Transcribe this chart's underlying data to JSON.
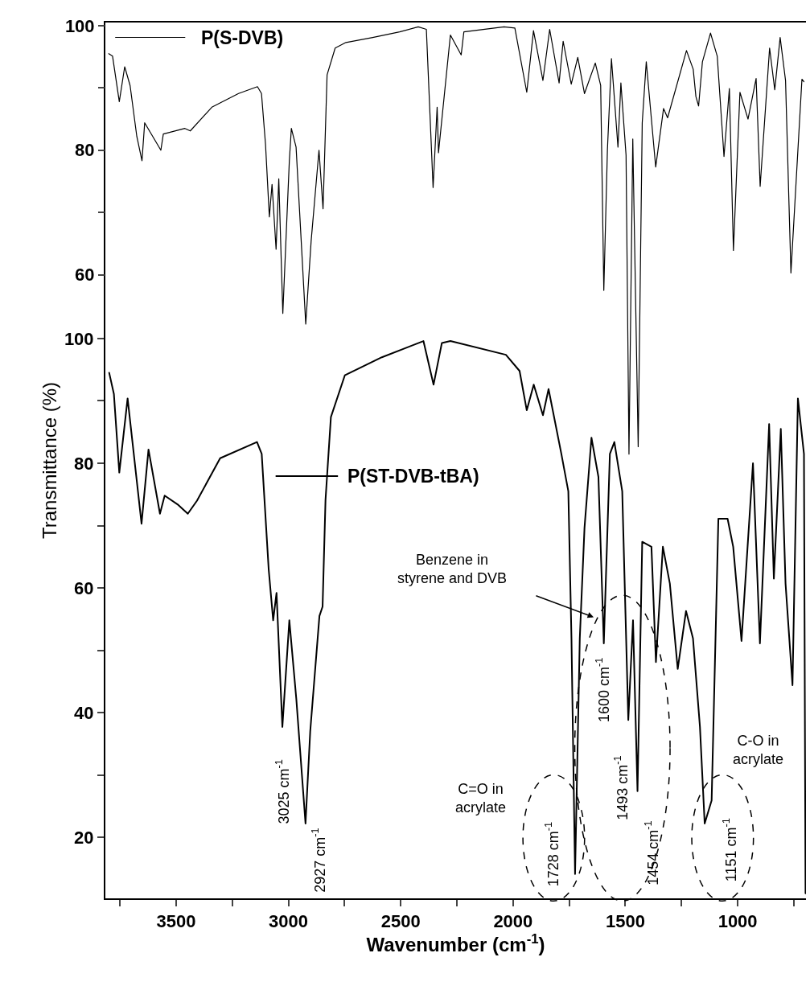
{
  "chart_data": {
    "type": "line",
    "xlabel": "Wavenumber (cm$^{-1}$)",
    "ylabel": "Transmittance (%)",
    "xlim": [
      3815,
      696
    ],
    "xticks": [
      {
        "value": 3750,
        "label": null
      },
      3500,
      {
        "value": 3250,
        "label": null
      },
      3000,
      {
        "value": 2750,
        "label": null
      },
      2500,
      {
        "value": 2250,
        "label": null
      },
      2000,
      {
        "value": 1750,
        "label": null
      },
      1500,
      {
        "value": 1250,
        "label": null
      },
      1000,
      {
        "value": 750,
        "label": null
      }
    ],
    "ylim": [
      10.2,
      150.7
    ],
    "yticks": [
      20,
      {
        "value": 30,
        "label": null
      },
      40,
      {
        "value": 50,
        "label": null
      },
      60,
      {
        "value": 70,
        "label": null
      },
      80,
      {
        "value": 90,
        "label": null
      },
      100
    ],
    "y2lim": [
      -40.1,
      100.5
    ],
    "y2ticks": [
      60,
      {
        "value": 70,
        "label": null
      },
      80,
      {
        "value": 90,
        "label": null
      },
      100
    ],
    "legend": "top left",
    "grid": false,
    "marker": "none",
    "line_style": "solid",
    "series": [
      {
        "name": "P(S-DVB)",
        "color": "#000000",
        "axis": "y2",
        "x": [
          3800,
          3783,
          3753,
          3729,
          3705,
          3675,
          3652,
          3640,
          3568,
          3557,
          3461,
          3437,
          3341,
          3222,
          3138,
          3120,
          3102,
          3085,
          3073,
          3055,
          3043,
          3025,
          2996,
          2987,
          2966,
          2923,
          2899,
          2864,
          2846,
          2828,
          2792,
          2744,
          2625,
          2505,
          2422,
          2386,
          2356,
          2338,
          2332,
          2279,
          2231,
          2219,
          2040,
          1992,
          1939,
          1909,
          1867,
          1837,
          1795,
          1777,
          1741,
          1712,
          1682,
          1634,
          1610,
          1596,
          1580,
          1562,
          1533,
          1520,
          1497,
          1484,
          1467,
          1443,
          1425,
          1407,
          1365,
          1330,
          1312,
          1228,
          1198,
          1186,
          1174,
          1157,
          1121,
          1091,
          1061,
          1037,
          1019,
          990,
          954,
          918,
          900,
          858,
          835,
          811,
          787,
          763,
          714,
          705
        ],
        "values": [
          95.5,
          95.1,
          87.8,
          93.4,
          90.4,
          82.2,
          78.3,
          84.4,
          80.0,
          82.6,
          83.5,
          83.1,
          86.9,
          89.1,
          90.2,
          89.1,
          80.9,
          69.3,
          74.5,
          64.1,
          75.4,
          53.8,
          78.3,
          83.5,
          80.5,
          52.1,
          65.4,
          80.0,
          70.6,
          92.1,
          96.4,
          97.3,
          98.1,
          99.0,
          99.8,
          99.4,
          74.0,
          86.9,
          79.6,
          98.5,
          95.3,
          99.0,
          99.8,
          99.6,
          89.3,
          99.2,
          91.2,
          99.4,
          90.8,
          97.5,
          90.6,
          94.9,
          89.1,
          94.0,
          90.4,
          57.5,
          80.0,
          94.7,
          80.5,
          90.8,
          79.2,
          31.2,
          81.8,
          32.4,
          84.4,
          94.2,
          77.3,
          86.7,
          85.2,
          96.0,
          93.0,
          88.6,
          87.1,
          94.2,
          98.8,
          95.1,
          79.0,
          89.9,
          63.9,
          89.3,
          85.0,
          91.5,
          74.2,
          96.4,
          89.7,
          98.1,
          91.2,
          60.3,
          91.4,
          91.0
        ]
      },
      {
        "name": "P(ST-DVB-tBA)",
        "color": "#000000",
        "x": [
          3798,
          3777,
          3753,
          3716,
          3654,
          3623,
          3572,
          3551,
          3490,
          3448,
          3407,
          3304,
          3140,
          3119,
          3088,
          3068,
          3053,
          3027,
          2996,
          2965,
          2924,
          2903,
          2862,
          2848,
          2835,
          2811,
          2749,
          2584,
          2399,
          2354,
          2317,
          2279,
          2032,
          1971,
          1939,
          1908,
          1867,
          1842,
          1785,
          1754,
          1740,
          1724,
          1703,
          1682,
          1651,
          1620,
          1596,
          1569,
          1549,
          1514,
          1487,
          1466,
          1446,
          1425,
          1384,
          1364,
          1333,
          1302,
          1267,
          1230,
          1199,
          1168,
          1147,
          1116,
          1086,
          1045,
          1020,
          983,
          932,
          901,
          860,
          839,
          808,
          787,
          756,
          732,
          705,
          698
        ],
        "values": [
          94.5,
          91.1,
          78.5,
          90.4,
          70.3,
          82.2,
          71.9,
          74.8,
          73.3,
          71.9,
          74.0,
          80.8,
          83.4,
          81.5,
          63.0,
          54.8,
          59.2,
          37.7,
          54.8,
          42.2,
          22.2,
          37.0,
          55.5,
          57.0,
          74.1,
          87.4,
          94.1,
          97.0,
          99.6,
          92.6,
          99.3,
          99.6,
          97.4,
          94.8,
          88.5,
          92.6,
          87.7,
          91.9,
          81.5,
          75.5,
          51.9,
          14.1,
          51.9,
          69.6,
          84.1,
          77.8,
          51.1,
          81.5,
          83.4,
          75.5,
          38.8,
          54.8,
          27.4,
          67.4,
          66.6,
          48.1,
          66.6,
          60.7,
          47.0,
          56.3,
          51.9,
          37.7,
          22.2,
          25.9,
          71.1,
          71.1,
          66.6,
          51.5,
          80.0,
          51.1,
          86.3,
          61.5,
          85.5,
          60.7,
          44.4,
          90.4,
          81.5,
          11.0
        ]
      }
    ],
    "annotations": [
      "Benzene in\nstyrene and DVB",
      "C=O in\nacrylate",
      "C-O in\nacrylate",
      "3025 cm$^{-1}$",
      "2927 cm$^{-1}$",
      "1728 cm$^{-1}$",
      "1600 cm$^{-1}$",
      "1493 cm$^{-1}$",
      "1454 cm$^{-1}$",
      "1151 cm$^{-1}$"
    ]
  }
}
